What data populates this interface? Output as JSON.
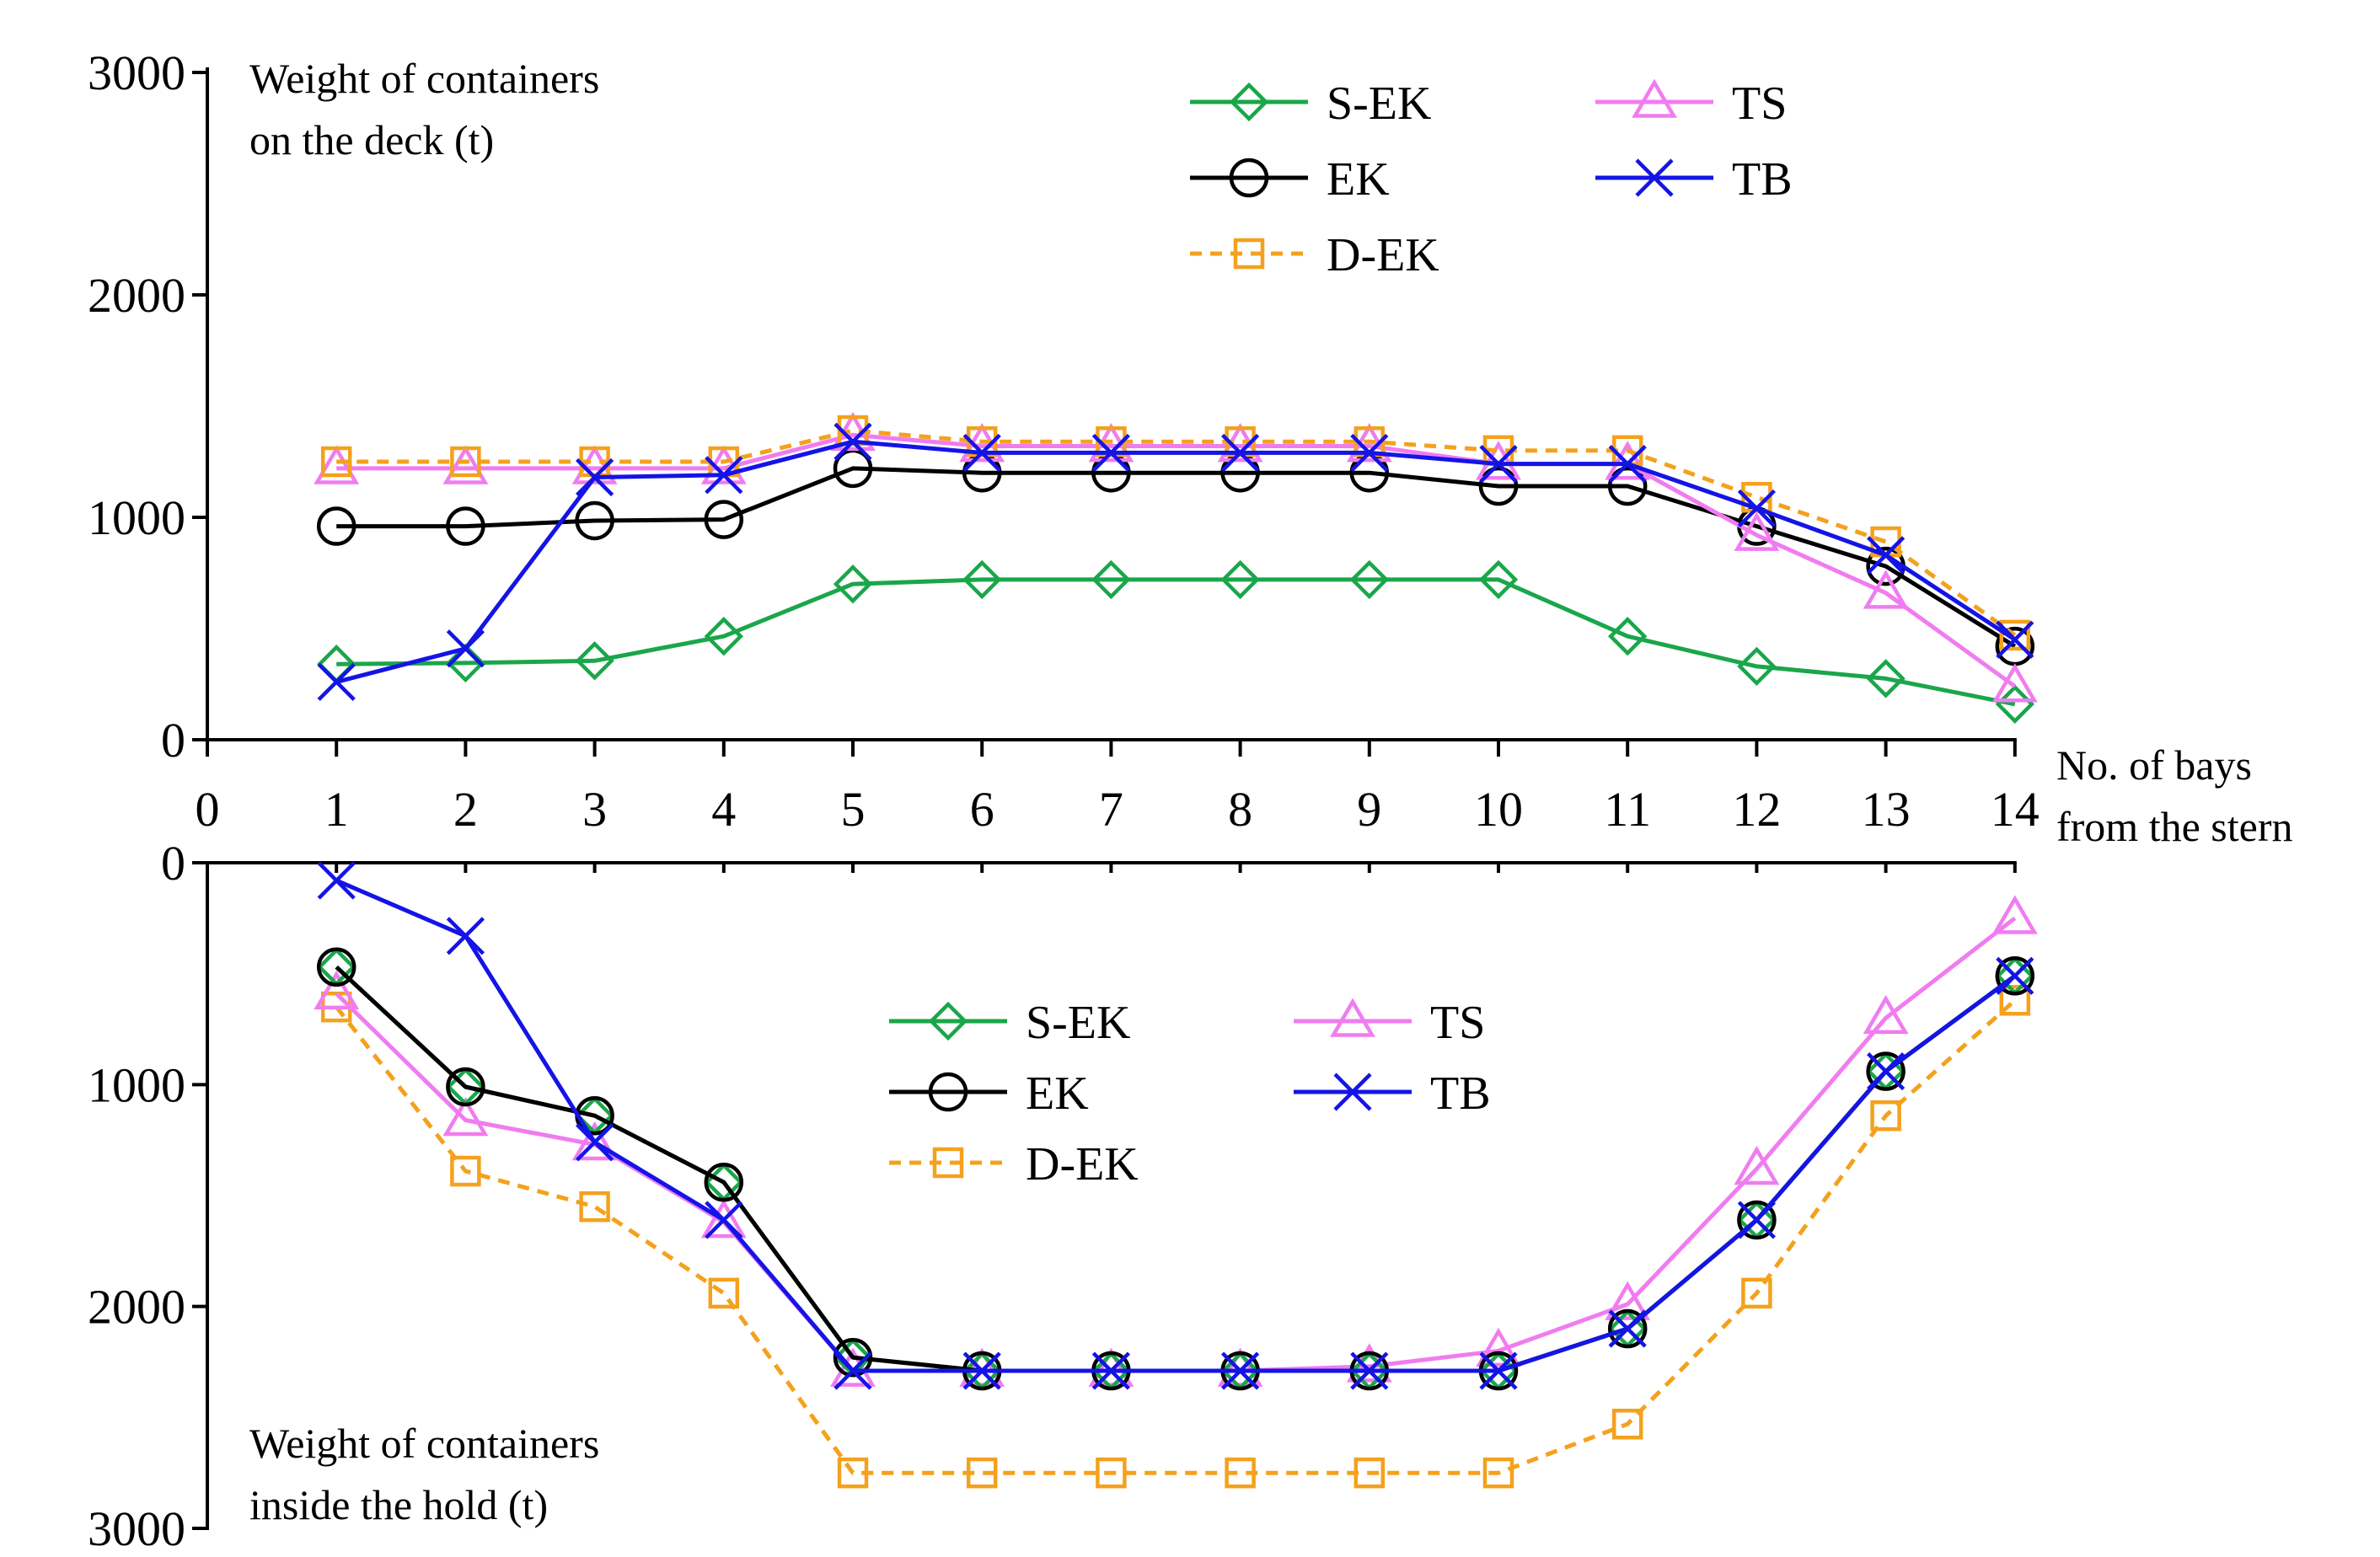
{
  "chart_data": [
    {
      "type": "line",
      "panel": "deck",
      "title": "",
      "ylabel_lines": [
        "Weight of containers",
        "on the deck (t)"
      ],
      "xlabel_lines": [
        "No. of bays",
        "from the stern"
      ],
      "xlim": [
        0,
        14
      ],
      "ylim": [
        0,
        3000
      ],
      "xticks": [
        0,
        1,
        2,
        3,
        4,
        5,
        6,
        7,
        8,
        9,
        10,
        11,
        12,
        13,
        14
      ],
      "yticks": [
        0,
        1000,
        2000,
        3000
      ],
      "grid": false,
      "legend_position": "top-right",
      "categories": [
        1,
        2,
        3,
        4,
        5,
        6,
        7,
        8,
        9,
        10,
        11,
        12,
        13,
        14
      ],
      "series": [
        {
          "name": "S-EK",
          "color": "#1aa64a",
          "marker": "diamond",
          "dashed": false,
          "values": [
            340,
            345,
            355,
            465,
            700,
            720,
            720,
            720,
            720,
            720,
            465,
            330,
            275,
            160
          ]
        },
        {
          "name": "EK",
          "color": "#000000",
          "marker": "circle",
          "dashed": false,
          "values": [
            960,
            960,
            985,
            990,
            1220,
            1200,
            1200,
            1200,
            1200,
            1140,
            1140,
            960,
            780,
            420
          ]
        },
        {
          "name": "D-EK",
          "color": "#f4a11d",
          "marker": "square",
          "dashed": true,
          "values": [
            1250,
            1250,
            1250,
            1250,
            1390,
            1340,
            1340,
            1340,
            1340,
            1300,
            1300,
            1090,
            890,
            470
          ]
        },
        {
          "name": "TS",
          "color": "#f07cf0",
          "marker": "triangle",
          "dashed": false,
          "values": [
            1220,
            1220,
            1220,
            1220,
            1370,
            1320,
            1320,
            1320,
            1320,
            1240,
            1240,
            920,
            660,
            240
          ]
        },
        {
          "name": "TB",
          "color": "#1414e6",
          "marker": "x",
          "dashed": false,
          "values": [
            260,
            410,
            1180,
            1190,
            1340,
            1290,
            1290,
            1290,
            1290,
            1240,
            1240,
            1040,
            830,
            450
          ]
        }
      ],
      "legend": {
        "col1": [
          "S-EK",
          "EK",
          "D-EK"
        ],
        "col2": [
          "TS",
          "TB"
        ]
      }
    },
    {
      "type": "line",
      "panel": "hold",
      "title": "",
      "ylabel_lines": [
        "Weight of containers",
        "inside the hold (t)"
      ],
      "xlim": [
        0,
        14
      ],
      "ylim": [
        0,
        3000
      ],
      "y_inverted": true,
      "yticks": [
        0,
        1000,
        2000,
        3000
      ],
      "grid": false,
      "legend_position": "center",
      "categories": [
        1,
        2,
        3,
        4,
        5,
        6,
        7,
        8,
        9,
        10,
        11,
        12,
        13,
        14
      ],
      "series": [
        {
          "name": "S-EK",
          "color": "#1aa64a",
          "marker": "diamond",
          "dashed": false,
          "values": [
            470,
            1010,
            1140,
            1440,
            2230,
            2290,
            2290,
            2290,
            2290,
            2290,
            2100,
            1610,
            940,
            510
          ]
        },
        {
          "name": "EK",
          "color": "#000000",
          "marker": "circle",
          "dashed": false,
          "values": [
            470,
            1010,
            1140,
            1440,
            2230,
            2290,
            2290,
            2290,
            2290,
            2290,
            2100,
            1610,
            940,
            510
          ]
        },
        {
          "name": "D-EK",
          "color": "#f4a11d",
          "marker": "square",
          "dashed": true,
          "values": [
            650,
            1390,
            1550,
            1940,
            2750,
            2750,
            2750,
            2750,
            2750,
            2750,
            2530,
            1940,
            1140,
            620
          ]
        },
        {
          "name": "TS",
          "color": "#f07cf0",
          "marker": "triangle",
          "dashed": false,
          "values": [
            590,
            1160,
            1270,
            1620,
            2290,
            2290,
            2290,
            2290,
            2270,
            2200,
            1990,
            1380,
            700,
            250
          ]
        },
        {
          "name": "TB",
          "color": "#1414e6",
          "marker": "x",
          "dashed": false,
          "values": [
            80,
            330,
            1260,
            1610,
            2290,
            2290,
            2290,
            2290,
            2290,
            2290,
            2100,
            1610,
            940,
            510
          ]
        }
      ],
      "legend": {
        "col1": [
          "S-EK",
          "EK",
          "D-EK"
        ],
        "col2": [
          "TS",
          "TB"
        ]
      }
    }
  ]
}
